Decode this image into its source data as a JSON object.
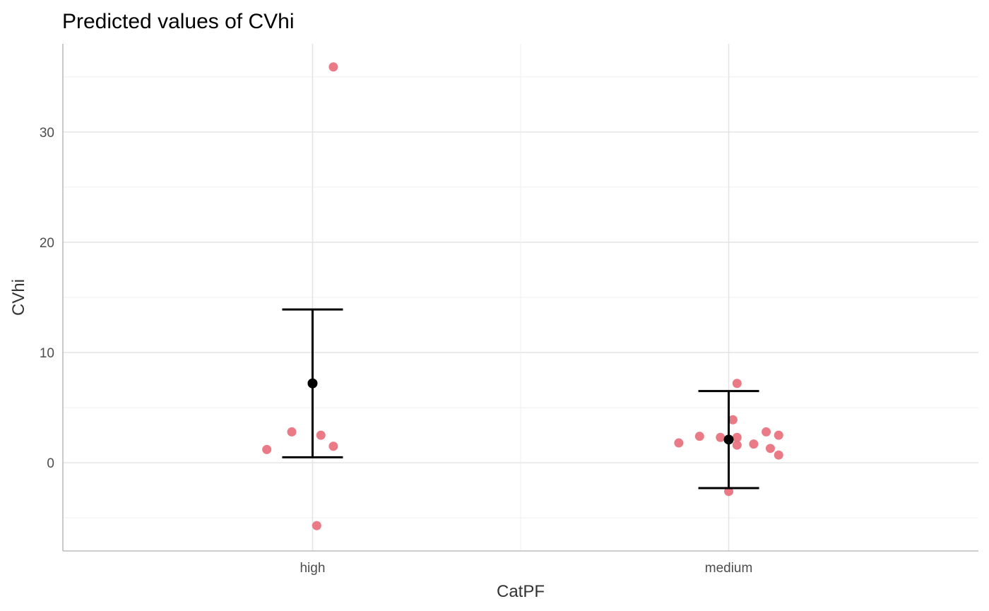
{
  "chart_data": {
    "type": "scatter",
    "title": "Predicted values of CVhi",
    "xlabel": "CatPF",
    "ylabel": "CVhi",
    "categories": [
      "high",
      "medium"
    ],
    "ylim": [
      -8,
      38
    ],
    "yticks": [
      0,
      10,
      20,
      30
    ],
    "grid": true,
    "point_color": "#e8737f",
    "estimate_color": "#000000",
    "predictions": [
      {
        "category": "high",
        "estimate": 7.2,
        "conf_low": 0.5,
        "conf_high": 13.9
      },
      {
        "category": "medium",
        "estimate": 2.1,
        "conf_low": -2.3,
        "conf_high": 6.5
      }
    ],
    "observations": [
      {
        "category": "high",
        "offset": 0.05,
        "y": 35.9
      },
      {
        "category": "high",
        "offset": -0.05,
        "y": 2.8
      },
      {
        "category": "high",
        "offset": 0.02,
        "y": 2.5
      },
      {
        "category": "high",
        "offset": 0.05,
        "y": 1.5
      },
      {
        "category": "high",
        "offset": -0.11,
        "y": 1.2
      },
      {
        "category": "high",
        "offset": 0.01,
        "y": -5.7
      },
      {
        "category": "medium",
        "offset": 0.02,
        "y": 7.2
      },
      {
        "category": "medium",
        "offset": 0.01,
        "y": 3.9
      },
      {
        "category": "medium",
        "offset": 0.09,
        "y": 2.8
      },
      {
        "category": "medium",
        "offset": 0.12,
        "y": 2.5
      },
      {
        "category": "medium",
        "offset": -0.07,
        "y": 2.4
      },
      {
        "category": "medium",
        "offset": -0.02,
        "y": 2.3
      },
      {
        "category": "medium",
        "offset": 0.02,
        "y": 2.3
      },
      {
        "category": "medium",
        "offset": -0.12,
        "y": 1.8
      },
      {
        "category": "medium",
        "offset": 0.06,
        "y": 1.7
      },
      {
        "category": "medium",
        "offset": 0.02,
        "y": 1.6
      },
      {
        "category": "medium",
        "offset": 0.1,
        "y": 1.3
      },
      {
        "category": "medium",
        "offset": 0.12,
        "y": 0.7
      },
      {
        "category": "medium",
        "offset": 0.0,
        "y": -2.6
      }
    ]
  }
}
